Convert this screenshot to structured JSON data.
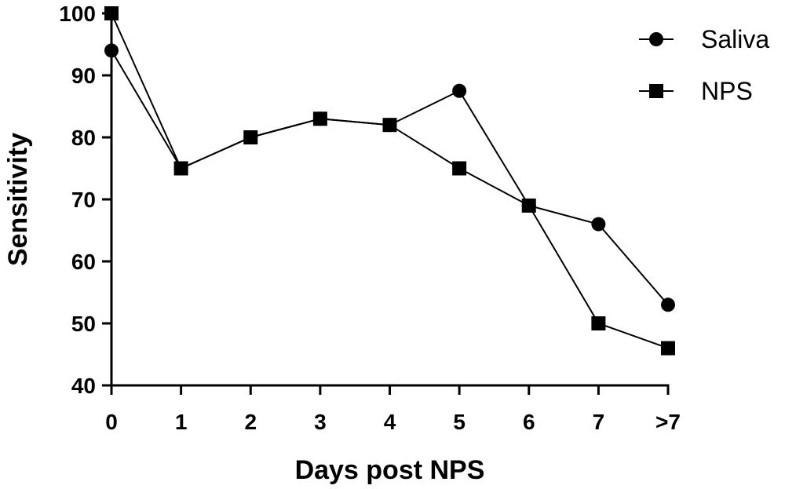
{
  "chart_data": {
    "type": "line",
    "title": "",
    "xlabel": "Days post NPS",
    "ylabel": "Sensitivity",
    "categories": [
      "0",
      "1",
      "2",
      "3",
      "4",
      "5",
      "6",
      "7",
      ">7"
    ],
    "ylim": [
      40,
      100
    ],
    "yticks": [
      40,
      50,
      60,
      70,
      80,
      90,
      100
    ],
    "grid": false,
    "legend_position": "top-right",
    "series": [
      {
        "name": "Saliva",
        "marker": "circle",
        "color": "#000000",
        "values": [
          94,
          75,
          80,
          83,
          82,
          87.5,
          69,
          66,
          53
        ]
      },
      {
        "name": "NPS",
        "marker": "square",
        "color": "#000000",
        "values": [
          100,
          75,
          80,
          83,
          82,
          75,
          69,
          50,
          46
        ]
      }
    ]
  }
}
